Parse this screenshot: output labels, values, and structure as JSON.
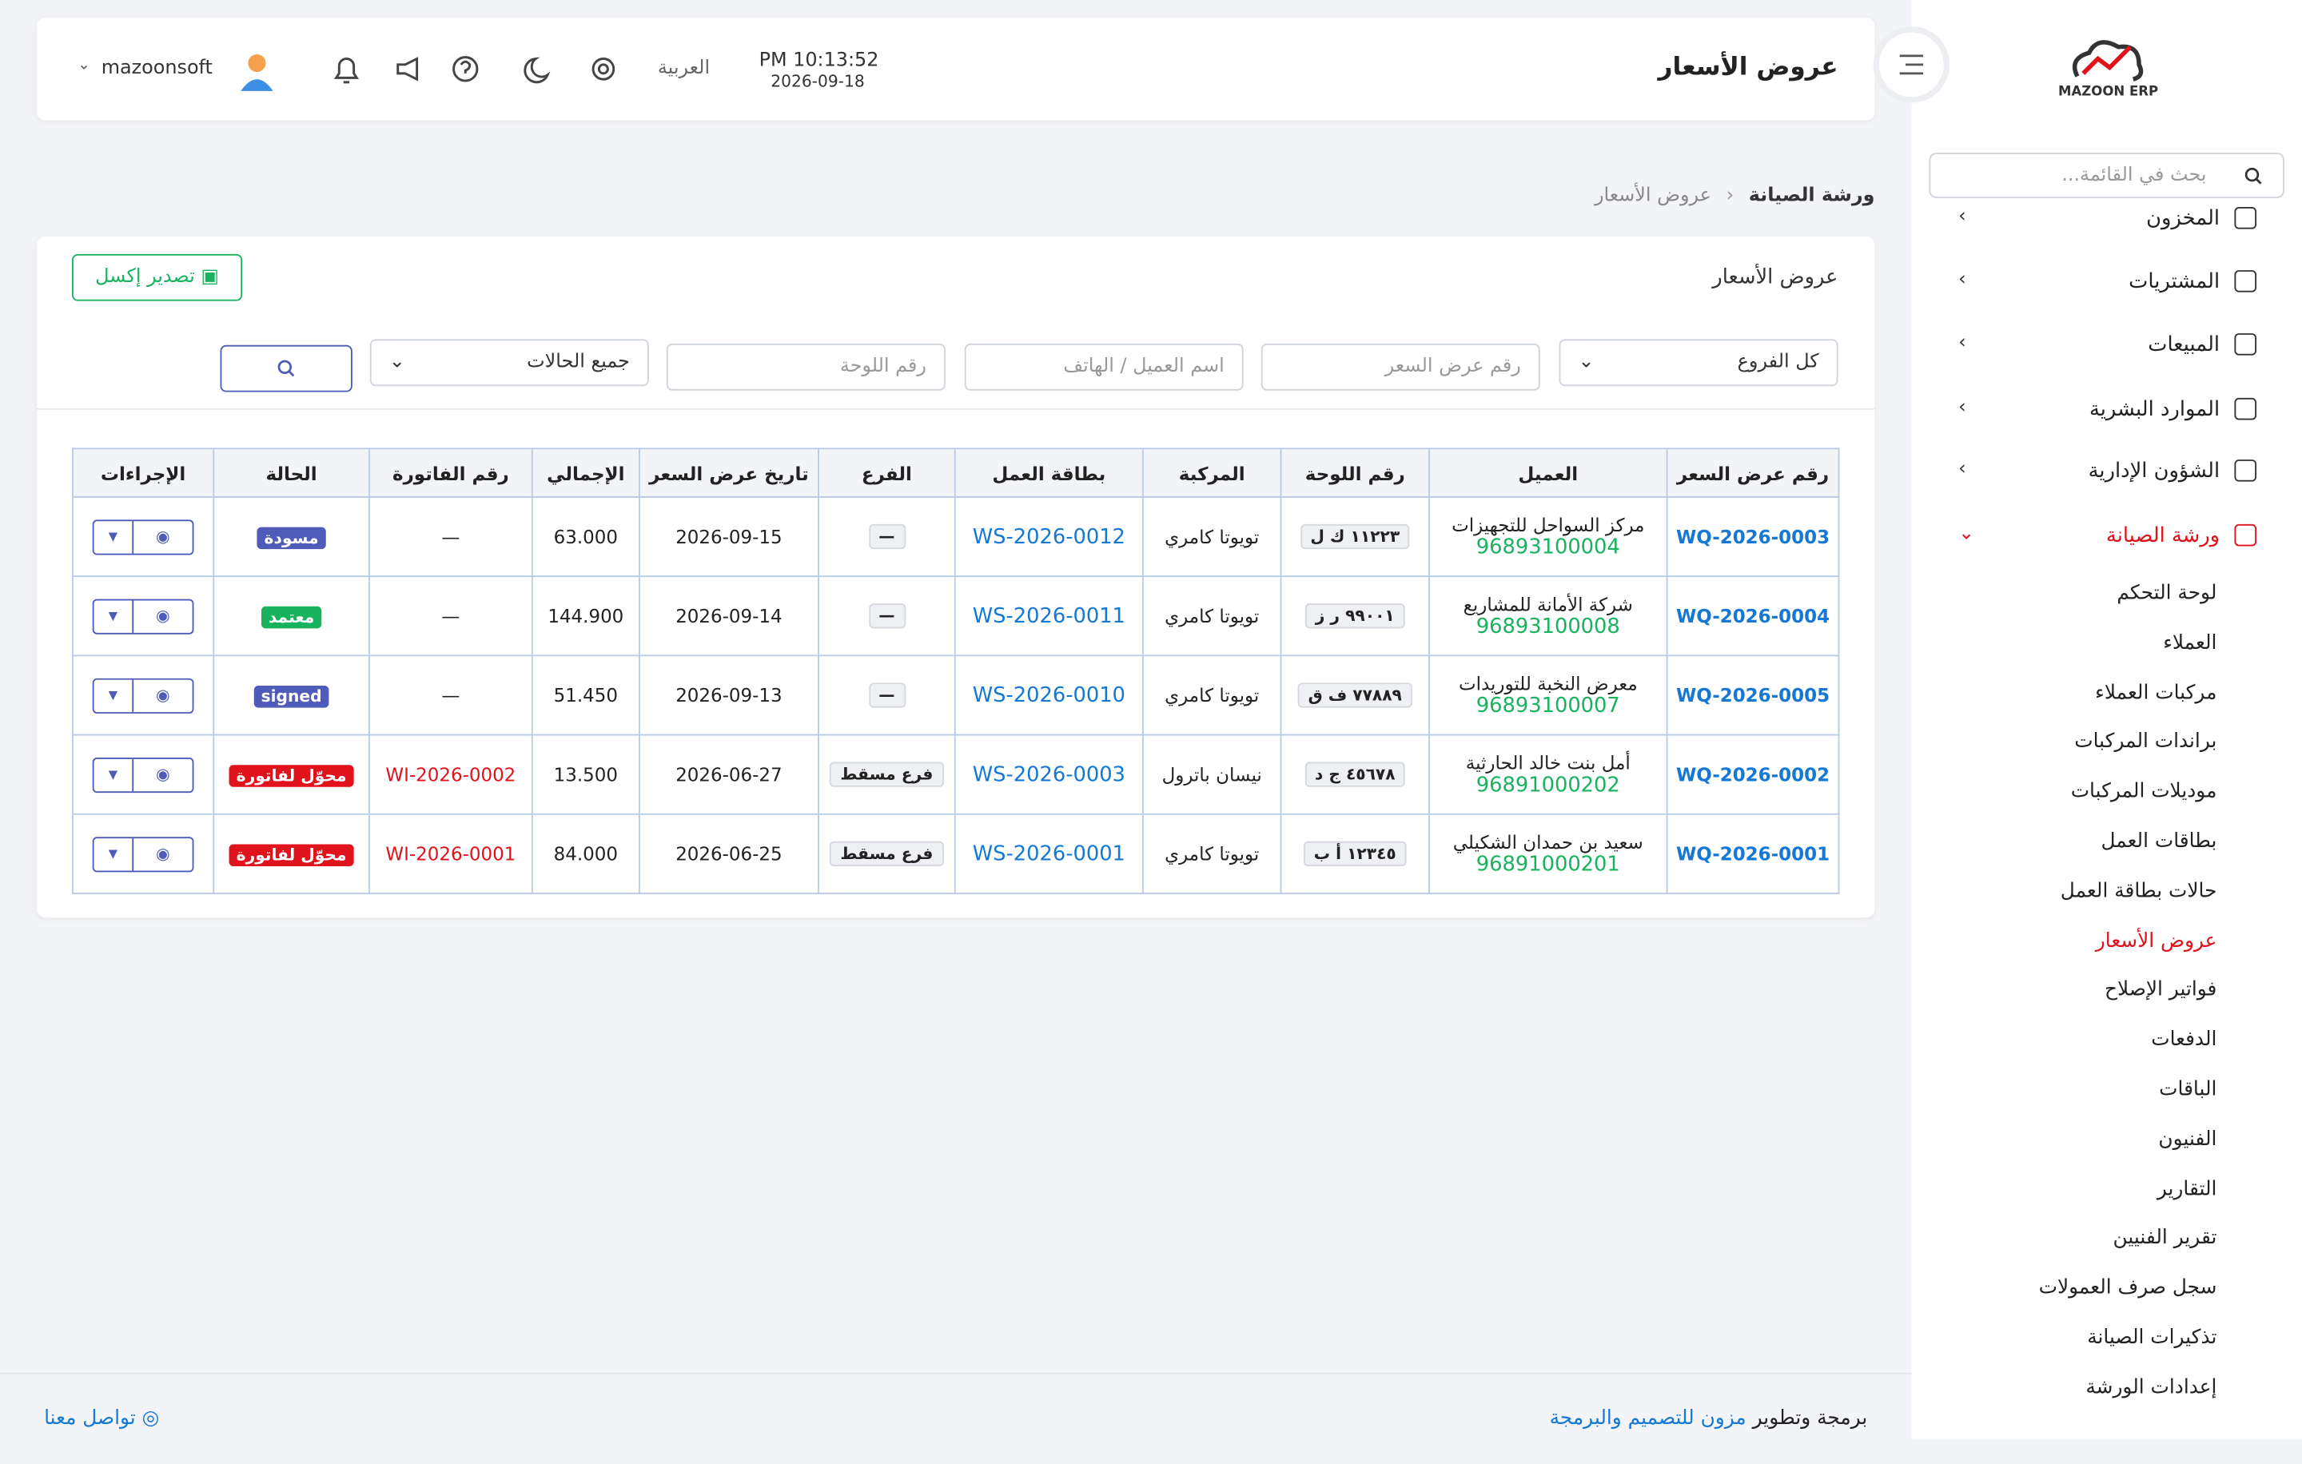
{
  "header": {
    "title": "عروض الأسعار",
    "time": "PM 10:13:52",
    "date": "2026-09-18",
    "language": "العربية",
    "user": "mazoonsoft"
  },
  "sidebar": {
    "brand": "MAZOON ERP",
    "search_placeholder": "بحث في القائمة...",
    "menu": [
      "المخزون",
      "المشتريات",
      "المبيعات",
      "الموارد البشرية",
      "الشؤون الإدارية",
      "ورشة الصيانة"
    ],
    "submenu": [
      "لوحة التحكم",
      "العملاء",
      "مركبات العملاء",
      "براندات المركبات",
      "موديلات المركبات",
      "بطاقات العمل",
      "حالات بطاقة العمل",
      "عروض الأسعار",
      "فواتير الإصلاح",
      "الدفعات",
      "الباقات",
      "الفنيون",
      "التقارير",
      "تقرير الفنيين",
      "سجل صرف العمولات",
      "تذكيرات الصيانة",
      "إعدادات الورشة"
    ]
  },
  "breadcrumb": [
    "ورشة الصيانة",
    "عروض الأسعار"
  ],
  "card": {
    "title": "عروض الأسعار",
    "export": "تصدير إكسل"
  },
  "filters": {
    "branch": "كل الفروع",
    "quote_placeholder": "رقم عرض السعر",
    "client_placeholder": "اسم العميل / الهاتف",
    "plate_placeholder": "رقم اللوحة",
    "status": "جميع الحالات"
  },
  "table": {
    "columns": [
      "رقم عرض السعر",
      "العميل",
      "رقم اللوحة",
      "المركبة",
      "بطاقة العمل",
      "الفرع",
      "تاريخ عرض السعر",
      "الإجمالي",
      "رقم الفاتورة",
      "الحالة",
      "الإجراءات"
    ],
    "rows": [
      {
        "number": "WQ-2026-0003",
        "client": "مركز السواحل للتجهيزات",
        "phone": "96893100004",
        "plate": "١١٢٢٣ ك ل",
        "vehicle": "تويوتا كامري",
        "job": "WS-2026-0012",
        "branch": "—",
        "date": "2026-09-15",
        "total": "63.000",
        "invoice": "—",
        "status": "مسودة",
        "status_color": "#4f5bb8"
      },
      {
        "number": "WQ-2026-0004",
        "client": "شركة الأمانة للمشاريع",
        "phone": "96893100008",
        "plate": "٩٩٠٠١ ر ز",
        "vehicle": "تويوتا كامري",
        "job": "WS-2026-0011",
        "branch": "—",
        "date": "2026-09-14",
        "total": "144.900",
        "invoice": "—",
        "status": "معتمد",
        "status_color": "#19b35f"
      },
      {
        "number": "WQ-2026-0005",
        "client": "معرض النخبة للتوريدات",
        "phone": "96893100007",
        "plate": "٧٧٨٨٩ ف ق",
        "vehicle": "تويوتا كامري",
        "job": "WS-2026-0010",
        "branch": "—",
        "date": "2026-09-13",
        "total": "51.450",
        "invoice": "—",
        "status": "signed",
        "status_color": "#4f5bb8"
      },
      {
        "number": "WQ-2026-0002",
        "client": "أمل بنت خالد الحارثية",
        "phone": "96891000202",
        "plate": "٤٥٦٧٨ ج د",
        "vehicle": "نيسان باترول",
        "job": "WS-2026-0003",
        "branch": "فرع مسقط",
        "date": "2026-06-27",
        "total": "13.500",
        "invoice": "WI-2026-0002",
        "status": "محوّل لفاتورة",
        "status_color": "#e0121c"
      },
      {
        "number": "WQ-2026-0001",
        "client": "سعيد بن حمدان الشكيلي",
        "phone": "96891000201",
        "plate": "١٢٣٤٥ أ ب",
        "vehicle": "تويوتا كامري",
        "job": "WS-2026-0001",
        "branch": "فرع مسقط",
        "date": "2026-06-25",
        "total": "84.000",
        "invoice": "WI-2026-0001",
        "status": "محوّل لفاتورة",
        "status_color": "#e0121c"
      }
    ]
  },
  "footer": {
    "credit": "برمجة وتطوير",
    "company": "مزون للتصميم والبرمجة",
    "contact": "تواصل معنا"
  }
}
